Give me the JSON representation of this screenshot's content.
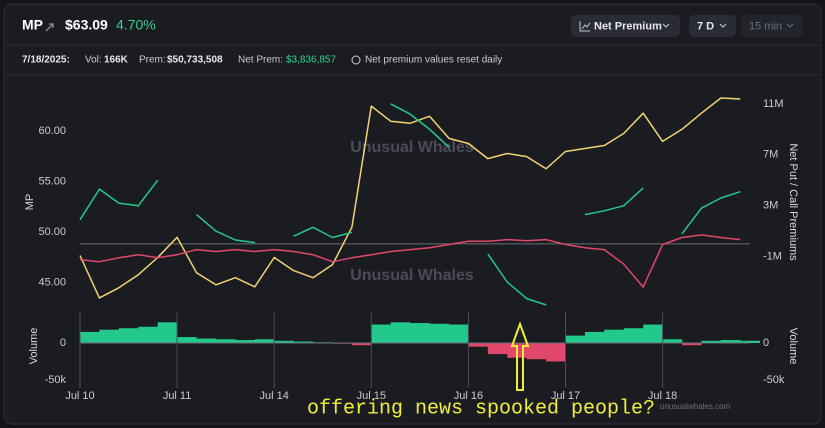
{
  "header": {
    "ticker": "MP",
    "price": "$63.09",
    "change": "4.70%",
    "buttons": [
      "Net Premium",
      "7 D",
      "15 min"
    ]
  },
  "summary": {
    "date": "7/18/2025:",
    "vol_label": "Vol:",
    "vol": "166K",
    "prem_label": "Prem:",
    "prem": "$50,733,508",
    "net_prem_label": "Net Prem:",
    "net_prem": "$3,836,857",
    "note": "Net premium values reset daily"
  },
  "chart_data": [
    {
      "type": "line",
      "watermark": "Unusual Whales",
      "x": [
        0,
        0.2,
        0.4,
        0.6,
        0.8,
        1,
        1.2,
        1.4,
        1.6,
        1.8,
        2,
        2.2,
        2.4,
        2.6,
        2.8,
        3,
        3.2,
        3.4,
        3.6,
        3.8,
        4,
        4.2,
        4.4,
        4.6,
        4.8,
        5,
        5.2,
        5.4,
        5.6,
        5.8,
        6,
        6.2,
        6.4,
        6.6,
        6.8
      ],
      "xlim": [
        0,
        6.9
      ],
      "ylabel": "MP",
      "ylim": [
        42.3,
        63.6
      ],
      "yticks": [
        {
          "value": 60,
          "label": "60.00"
        },
        {
          "value": 55,
          "label": "55.00"
        },
        {
          "value": 50,
          "label": "50.00"
        },
        {
          "value": 45,
          "label": "45.00"
        }
      ],
      "y2label": "Net Put / Call Premiums",
      "y2lim": [
        -5200000,
        11700000
      ],
      "y2ticks": [
        {
          "value": 11000000,
          "label": "11M"
        },
        {
          "value": 7000000,
          "label": "7M"
        },
        {
          "value": 3000000,
          "label": "3M"
        },
        {
          "value": -1000000,
          "label": "-1M"
        }
      ],
      "series": [
        {
          "color": "#f3d272",
          "values": [
            47.7,
            43.5,
            44.5,
            45.8,
            47.5,
            49.5,
            46.0,
            44.8,
            45.5,
            44.6,
            47.5,
            46.2,
            45.5,
            46.8,
            50.5,
            62.5,
            61.0,
            60.8,
            61.5,
            59.3,
            58.8,
            57.3,
            57.8,
            57.5,
            56.3,
            58.0,
            58.3,
            58.6,
            59.8,
            61.8,
            59.0,
            60.2,
            61.8,
            63.3,
            63.2
          ]
        },
        {
          "color": "#22c98a",
          "axis": "y2",
          "values": [
            1900000,
            4300000,
            3200000,
            3000000,
            5000000,
            null,
            2300000,
            1000000,
            300000,
            100000,
            null,
            600000,
            1300000,
            500000,
            900000,
            null,
            11000000,
            10200000,
            9000000,
            7600000,
            null,
            -800000,
            -3000000,
            -4300000,
            -4800000,
            null,
            2300000,
            2600000,
            3000000,
            4400000,
            null,
            800000,
            2800000,
            3600000,
            4100000
          ]
        },
        {
          "color": "#e0486b",
          "axis": "y2",
          "values": [
            -1240000,
            -1400000,
            -1100000,
            -850000,
            -1100000,
            -850000,
            -450000,
            -600000,
            -450000,
            -600000,
            -450000,
            -600000,
            -850000,
            -1400000,
            -1100000,
            -850000,
            -600000,
            -450000,
            -300000,
            -50000,
            200000,
            200000,
            330000,
            250000,
            330000,
            -50000,
            -300000,
            -450000,
            -1600000,
            -3400000,
            -50000,
            500000,
            700000,
            500000,
            330000
          ]
        }
      ]
    },
    {
      "type": "bar",
      "ylabel": "Volume",
      "color": "#22c98a",
      "negative_color": "#e0486b",
      "x": [
        0,
        0.2,
        0.4,
        0.6,
        0.8,
        1,
        1.2,
        1.4,
        1.6,
        1.8,
        2,
        2.2,
        2.4,
        2.6,
        2.8,
        3,
        3.2,
        3.4,
        3.6,
        3.8,
        4,
        4.2,
        4.4,
        4.6,
        4.8,
        5,
        5.2,
        5.4,
        5.6,
        5.8,
        6,
        6.2,
        6.4,
        6.6,
        6.8
      ],
      "xlim": [
        0,
        6.9
      ],
      "xticks": [
        {
          "value": 0,
          "label": "Jul 10"
        },
        {
          "value": 1,
          "label": "Jul 11"
        },
        {
          "value": 2,
          "label": "Jul 14"
        },
        {
          "value": 3,
          "label": "Jul 15"
        },
        {
          "value": 4,
          "label": "Jul 16"
        },
        {
          "value": 5,
          "label": "Jul 17"
        },
        {
          "value": 6,
          "label": "Jul 18"
        }
      ],
      "ylim": [
        -61000,
        42000
      ],
      "yticks": [
        0,
        {
          "value": -50000,
          "label": "-50k"
        }
      ],
      "values": [
        15000,
        18000,
        20000,
        22000,
        28000,
        8000,
        6000,
        5000,
        4000,
        5000,
        3000,
        2000,
        1000,
        -1000,
        -3000,
        25000,
        28000,
        27000,
        26000,
        25000,
        -5000,
        -15000,
        -20000,
        -22000,
        -25000,
        10000,
        15000,
        18000,
        20000,
        25000,
        5000,
        -3000,
        3000,
        4000,
        3000
      ]
    }
  ],
  "annotation": "offering news spooked people?",
  "footer": "unusualwhales.com"
}
